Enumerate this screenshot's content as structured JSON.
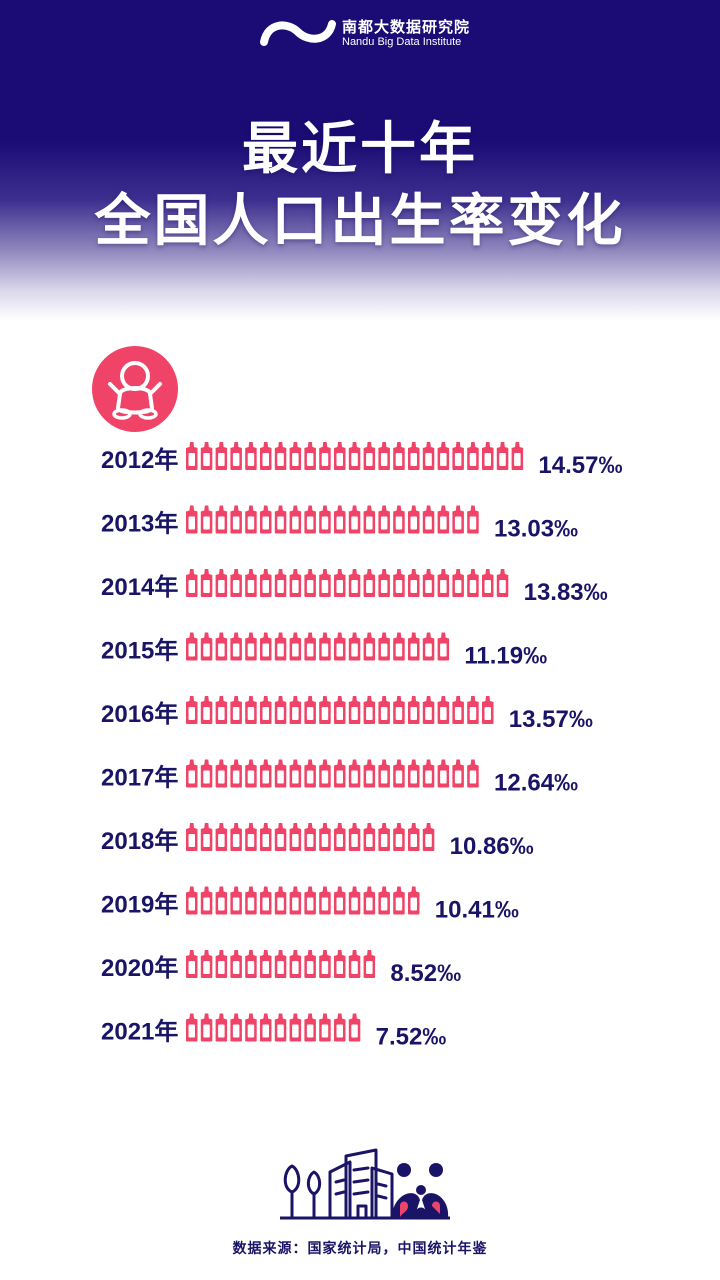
{
  "header": {
    "logo_cn": "南都大数据研究院",
    "logo_en": "Nandu Big Data Institute",
    "title_line1": "最近十年",
    "title_line2": "全国人口出生率变化"
  },
  "icons": {
    "badge": "baby-icon",
    "bar_unit": "baby-bottle-icon",
    "footer": "city-family-illustration"
  },
  "colors": {
    "navy": "#1a0b75",
    "bar": "#ef4468",
    "text": "#1a1466"
  },
  "chart_data": {
    "type": "bar",
    "orientation": "horizontal",
    "title": "全国人口出生率变化",
    "categories": [
      "2012年",
      "2013年",
      "2014年",
      "2015年",
      "2016年",
      "2017年",
      "2018年",
      "2019年",
      "2020年",
      "2021年"
    ],
    "values": [
      14.57,
      13.03,
      13.83,
      11.19,
      13.57,
      12.64,
      10.86,
      10.41,
      8.52,
      7.52
    ],
    "value_labels": [
      "14.57‰",
      "13.03‰",
      "13.83‰",
      "11.19‰",
      "13.57‰",
      "12.64‰",
      "10.86‰",
      "10.41‰",
      "8.52‰",
      "7.52‰"
    ],
    "unit": "‰",
    "xlim": [
      0,
      15
    ]
  },
  "footer": {
    "source": "数据来源：国家统计局，中国统计年鉴"
  }
}
